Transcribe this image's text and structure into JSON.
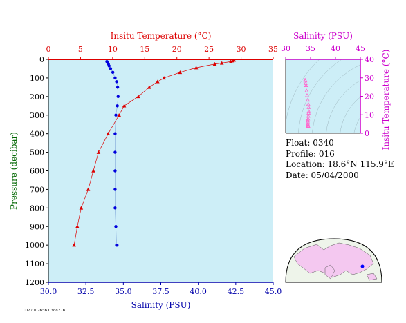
{
  "main_chart": {
    "top_axis_title": "Insitu Temperature (°C)",
    "bottom_axis_title": "Salinity (PSU)",
    "left_axis_title": "Pressure (decibar)",
    "temp_ticks": [
      "0",
      "5",
      "10",
      "15",
      "20",
      "25",
      "30",
      "35"
    ],
    "sal_ticks": [
      "30.0",
      "32.5",
      "35.0",
      "37.5",
      "40.0",
      "42.5",
      "45.0"
    ],
    "pres_ticks": [
      "0",
      "100",
      "200",
      "300",
      "400",
      "500",
      "600",
      "700",
      "800",
      "900",
      "1000",
      "1100",
      "1200"
    ],
    "colors": {
      "temperature": "#dd0000",
      "salinity": "#0000dd",
      "plot_bg": "#cdeef7",
      "sal_axis": "#0000aa"
    }
  },
  "ts_chart": {
    "top_axis_title": "Salinity (PSU)",
    "right_axis_title": "Insitu Temperature (°C)",
    "sal_ticks": [
      "30",
      "35",
      "40",
      "45"
    ],
    "temp_ticks": [
      "0",
      "10",
      "20",
      "30",
      "40"
    ],
    "colors": {
      "axis": "#cc00cc",
      "marker": "#ff66cc"
    }
  },
  "float_info": {
    "float": "Float:  0340",
    "profile": "Profile:  016",
    "location": "Location:  18.6°N  115.9°E",
    "date": "Date:  05/04/2000"
  },
  "footer_id": "1027002656.0388276",
  "chart_data": [
    {
      "type": "line",
      "title": "",
      "xlabel": "Insitu Temperature (°C)",
      "ylabel": "Pressure (decibar)",
      "xlim": [
        0,
        35
      ],
      "ylim": [
        1200,
        0
      ],
      "series": [
        {
          "marker": "triangle",
          "x": [
            28.9,
            28.7,
            28.4,
            27.0,
            25.9,
            23.0,
            20.5,
            18.0,
            17.0,
            15.7,
            14.0,
            11.8,
            11.0,
            9.3,
            7.8,
            7.0,
            6.2,
            5.1,
            4.5,
            4.0
          ],
          "y": [
            4,
            8,
            12,
            20,
            25,
            45,
            70,
            100,
            120,
            150,
            200,
            250,
            300,
            400,
            500,
            600,
            700,
            800,
            900,
            1000
          ]
        }
      ]
    },
    {
      "type": "scatter",
      "title": "",
      "xlabel": "Salinity (PSU)",
      "ylabel": "Pressure (decibar)",
      "xlim": [
        30,
        45
      ],
      "ylim": [
        1200,
        0
      ],
      "series": [
        {
          "marker": "circle",
          "x": [
            33.9,
            33.95,
            34.0,
            34.05,
            34.15,
            34.3,
            34.45,
            34.55,
            34.62,
            34.65,
            34.6,
            34.5,
            34.45,
            34.45,
            34.45,
            34.45,
            34.45,
            34.5,
            34.55,
            34.58
          ],
          "y": [
            12,
            18,
            25,
            35,
            50,
            70,
            100,
            120,
            150,
            200,
            250,
            300,
            400,
            500,
            600,
            700,
            800,
            900,
            1000,
            1000
          ]
        }
      ]
    },
    {
      "type": "scatter",
      "title": "",
      "xlabel": "Salinity (PSU)",
      "ylabel": "Insitu Temperature (°C)",
      "xlim": [
        30,
        45
      ],
      "ylim": [
        0,
        40
      ],
      "series": [
        {
          "marker": "triangle",
          "x": [
            33.9,
            33.95,
            34.0,
            34.1,
            34.2,
            34.3,
            34.45,
            34.55,
            34.62,
            34.65,
            34.6,
            34.55,
            34.5,
            34.45,
            34.45,
            34.45,
            34.45,
            34.5,
            34.55
          ],
          "y": [
            28.9,
            28.4,
            27.0,
            25.9,
            23.0,
            20.5,
            18.0,
            15.7,
            14.0,
            11.8,
            11.0,
            9.3,
            7.8,
            7.0,
            6.2,
            5.1,
            4.5,
            4.0,
            3.8
          ]
        }
      ]
    }
  ]
}
